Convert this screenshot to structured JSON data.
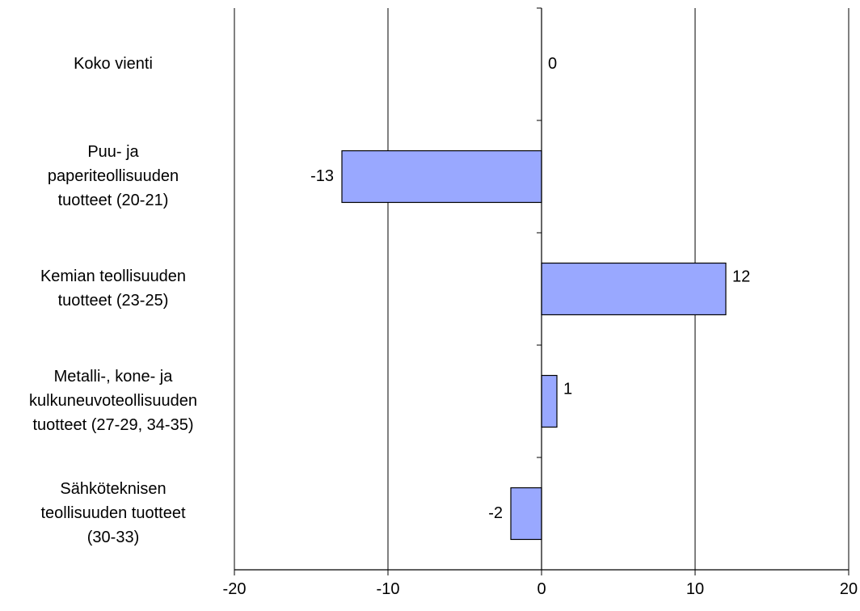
{
  "chart_data": {
    "type": "bar",
    "orientation": "horizontal",
    "title": "",
    "xlabel": "",
    "ylabel": "",
    "categories": [
      [
        "Koko vienti"
      ],
      [
        "Puu- ja",
        "paperiteollisuuden",
        "tuotteet (20-21)"
      ],
      [
        "Kemian teollisuuden",
        "tuotteet (23-25)"
      ],
      [
        "Metalli-, kone- ja",
        "kulkuneuvoteollisuuden",
        "tuotteet (27-29, 34-35)"
      ],
      [
        "Sähköteknisen",
        "teollisuuden tuotteet",
        "(30-33)"
      ]
    ],
    "values": [
      0,
      -13,
      12,
      1,
      -2
    ],
    "data_labels": [
      "0",
      "-13",
      "12",
      "1",
      "-2"
    ],
    "xlim": [
      -20,
      20
    ],
    "xticks": [
      -20,
      -10,
      0,
      10,
      20
    ],
    "xtick_labels": [
      "-20",
      "-10",
      "0",
      "10",
      "20"
    ],
    "grid": "vertical",
    "legend": "none",
    "bar_color": "#99a8ff",
    "bar_edge_color": "#000000"
  }
}
